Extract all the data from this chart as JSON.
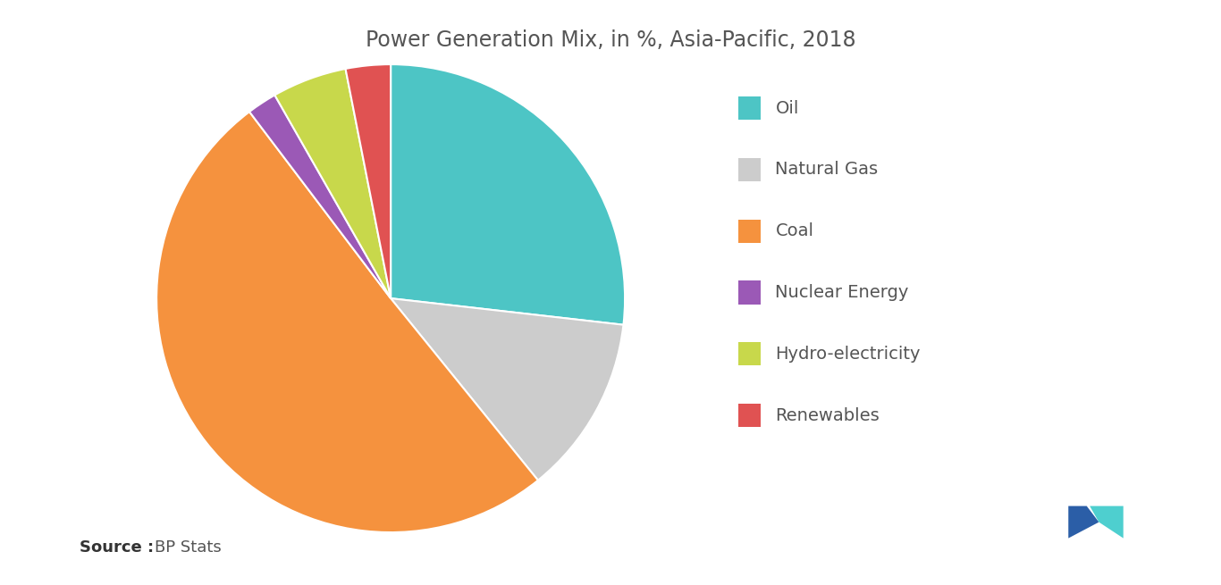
{
  "title": "Power Generation Mix, in %, Asia-Pacific, 2018",
  "title_fontsize": 17,
  "labels": [
    "Oil",
    "Natural Gas",
    "Coal",
    "Nuclear Energy",
    "Hydro-electricity",
    "Renewables"
  ],
  "values": [
    26,
    12,
    49,
    2,
    5,
    3
  ],
  "colors": [
    "#4DC5C5",
    "#CCCCCC",
    "#F5923E",
    "#9B59B6",
    "#C8D84B",
    "#E05252"
  ],
  "legend_labels": [
    "Oil",
    "Natural Gas",
    "Coal",
    "Nuclear Energy",
    "Hydro-electricity",
    "Renewables"
  ],
  "legend_colors": [
    "#4DC5C5",
    "#CCCCCC",
    "#F5923E",
    "#9B59B6",
    "#C8D84B",
    "#E05252"
  ],
  "source_bold": "Source :",
  "source_text": "BP Stats",
  "background_color": "#FFFFFF",
  "text_color": "#555555",
  "startangle": 90
}
